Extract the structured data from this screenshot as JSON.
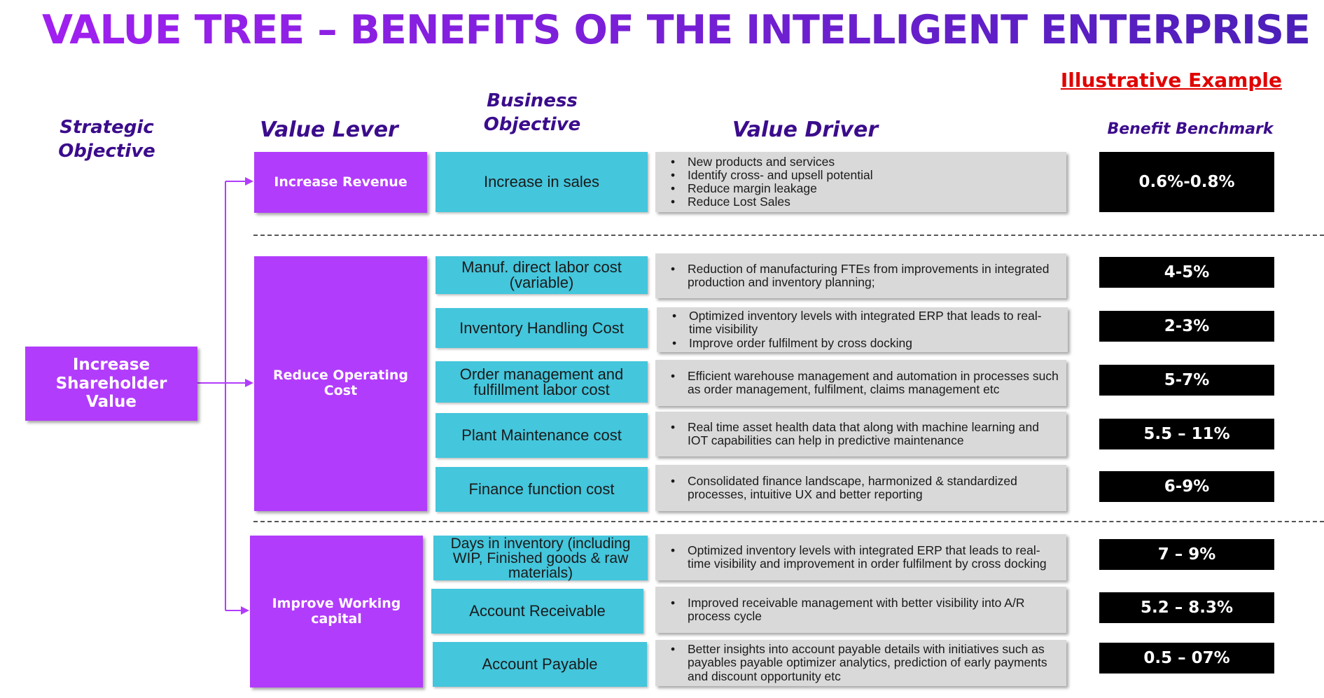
{
  "title": "VALUE TREE – BENEFITS OF THE INTELLIGENT ENTERPRISE",
  "illustrative": "Illustrative Example",
  "headers": {
    "strategic": "Strategic Objective",
    "lever": "Value Lever",
    "business": "Business Objective",
    "driver": "Value Driver",
    "benchmark": "Benefit Benchmark"
  },
  "strategic_objective": "Increase Shareholder Value",
  "levers": {
    "revenue": "Increase Revenue",
    "operating": "Reduce Operating Cost",
    "working": "Improve Working capital"
  },
  "rows": [
    {
      "objective": "Increase in sales",
      "drivers": [
        "New products and services",
        "Identify cross- and upsell potential",
        "Reduce margin leakage",
        "Reduce Lost Sales"
      ],
      "benchmark": "0.6%-0.8%"
    },
    {
      "objective": "Manuf. direct labor cost (variable)",
      "drivers": [
        "Reduction of manufacturing FTEs from improvements in integrated production and inventory planning;"
      ],
      "benchmark": "4-5%"
    },
    {
      "objective": "Inventory Handling Cost",
      "drivers": [
        "Optimized inventory levels with integrated ERP that leads to real-time visibility",
        "Improve order fulfilment by cross docking"
      ],
      "benchmark": "2-3%"
    },
    {
      "objective": "Order management and fulfillment labor cost",
      "drivers": [
        "Efficient warehouse management and automation in processes such as order management, fulfilment, claims management etc"
      ],
      "benchmark": "5-7%"
    },
    {
      "objective": "Plant Maintenance cost",
      "drivers": [
        "Real time asset health data that along with machine learning and IOT capabilities can help in predictive maintenance"
      ],
      "benchmark": "5.5 – 11%"
    },
    {
      "objective": "Finance function cost",
      "drivers": [
        "Consolidated finance landscape, harmonized & standardized processes, intuitive UX and better reporting"
      ],
      "benchmark": "6-9%"
    },
    {
      "objective": "Days in inventory (including WIP, Finished goods & raw materials)",
      "drivers": [
        "Optimized inventory levels with integrated ERP that leads to real-time visibility and improvement in order fulfilment by cross docking"
      ],
      "benchmark": "7 – 9%"
    },
    {
      "objective": "Account Receivable",
      "drivers": [
        "Improved receivable management with better visibility into A/R process cycle"
      ],
      "benchmark": "5.2 – 8.3%"
    },
    {
      "objective": "Account Payable",
      "drivers": [
        "Better insights into account payable details with initiatives such as payables payable optimizer analytics, prediction of early payments and discount opportunity etc"
      ],
      "benchmark": "0.5 – 07%"
    }
  ],
  "colors": {
    "purple": "#b23cfc",
    "cyan": "#44c6dc",
    "driver_grey": "#d9d9d9",
    "benchmark_black": "#000000",
    "header_navy": "#3b0c8c",
    "illustrative_red": "#e00000"
  }
}
